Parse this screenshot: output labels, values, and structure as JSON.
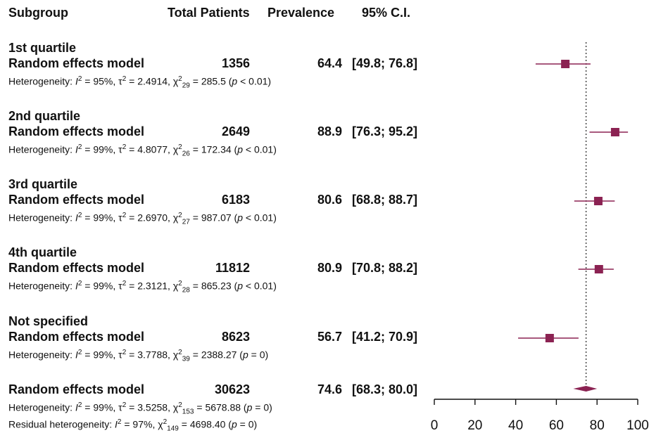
{
  "headers": {
    "subgroup": "Subgroup",
    "total_patients": "Total Patients",
    "prevalence": "Prevalence",
    "ci": "95% C.I."
  },
  "rows": [
    {
      "group": "1st quartile",
      "model": "Random effects model",
      "patients": "1356",
      "prevalence": "64.4",
      "ci": "[49.8; 76.8]",
      "het": {
        "label": "Heterogeneity:",
        "I2": "95%",
        "tau2": "2.4914",
        "df": "29",
        "chi2": "285.5",
        "p": "< 0.01"
      }
    },
    {
      "group": "2nd quartile",
      "model": "Random effects model",
      "patients": "2649",
      "prevalence": "88.9",
      "ci": "[76.3; 95.2]",
      "het": {
        "label": "Heterogeneity:",
        "I2": "99%",
        "tau2": "4.8077",
        "df": "26",
        "chi2": "172.34",
        "p": "< 0.01"
      }
    },
    {
      "group": "3rd quartile",
      "model": "Random effects model",
      "patients": "6183",
      "prevalence": "80.6",
      "ci": "[68.8; 88.7]",
      "het": {
        "label": "Heterogeneity:",
        "I2": "99%",
        "tau2": "2.6970",
        "df": "27",
        "chi2": "987.07",
        "p": "< 0.01"
      }
    },
    {
      "group": "4th quartile",
      "model": "Random effects model",
      "patients": "11812",
      "prevalence": "80.9",
      "ci": "[70.8; 88.2]",
      "het": {
        "label": "Heterogeneity:",
        "I2": "99%",
        "tau2": "2.3121",
        "df": "28",
        "chi2": "865.23",
        "p": "< 0.01"
      }
    },
    {
      "group": "Not specified",
      "model": "Random effects model",
      "patients": "8623",
      "prevalence": "56.7",
      "ci": "[41.2; 70.9]",
      "het": {
        "label": "Heterogeneity:",
        "I2": "99%",
        "tau2": "3.7788",
        "df": "39",
        "chi2": "2388.27",
        "p": "= 0"
      }
    }
  ],
  "overall": {
    "model": "Random effects model",
    "patients": "30623",
    "prevalence": "74.6",
    "ci": "[68.3; 80.0]",
    "het": {
      "label": "Heterogeneity:",
      "I2": "99%",
      "tau2": "3.5258",
      "df": "153",
      "chi2": "5678.88",
      "p": "= 0"
    },
    "residual": {
      "label": "Residual heterogeneity:",
      "I2": "97%",
      "df": "149",
      "chi2": "4698.40",
      "p": "= 0"
    }
  },
  "chart_data": {
    "type": "forest",
    "xlim": [
      0,
      100
    ],
    "xticks": [
      0,
      20,
      40,
      60,
      80,
      100
    ],
    "reference_line": 74.6,
    "marker_color": "#8b2252",
    "series": [
      {
        "name": "1st quartile",
        "estimate": 64.4,
        "lower": 49.8,
        "upper": 76.8
      },
      {
        "name": "2nd quartile",
        "estimate": 88.9,
        "lower": 76.3,
        "upper": 95.2
      },
      {
        "name": "3rd quartile",
        "estimate": 80.6,
        "lower": 68.8,
        "upper": 88.7
      },
      {
        "name": "4th quartile",
        "estimate": 80.9,
        "lower": 70.8,
        "upper": 88.2
      },
      {
        "name": "Not specified",
        "estimate": 56.7,
        "lower": 41.2,
        "upper": 70.9
      }
    ],
    "overall": {
      "estimate": 74.6,
      "lower": 68.3,
      "upper": 80.0
    }
  }
}
